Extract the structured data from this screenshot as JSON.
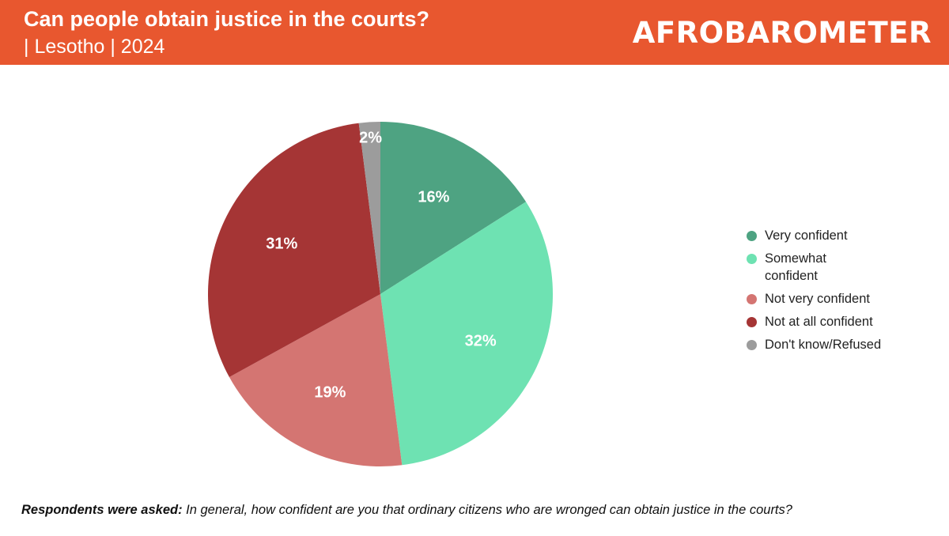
{
  "header": {
    "title": "Can people obtain justice in the courts?",
    "subtitle": "| Lesotho | 2024",
    "logo_text": "AFROBAROMETER",
    "background": "#e8572f"
  },
  "chart_data": {
    "type": "pie",
    "title": "Can people obtain justice in the courts?",
    "subtitle": "| Lesotho | 2024",
    "legend_position": "right",
    "slices": [
      {
        "label": "Very confident",
        "value": 16,
        "display": "16%",
        "color": "#4ea382"
      },
      {
        "label": "Somewhat confident",
        "value": 32,
        "display": "32%",
        "color": "#6ee2b2"
      },
      {
        "label": "Not very confident",
        "value": 19,
        "display": "19%",
        "color": "#d47572"
      },
      {
        "label": "Not at all confident",
        "value": 31,
        "display": "31%",
        "color": "#a53535"
      },
      {
        "label": "Don't know/Refused",
        "value": 2,
        "display": "2%",
        "color": "#9c9c9c"
      }
    ]
  },
  "footer": {
    "lead": "Respondents were asked:",
    "question": " In general, how confident are you that ordinary citizens who are wronged can obtain justice in the courts?"
  }
}
